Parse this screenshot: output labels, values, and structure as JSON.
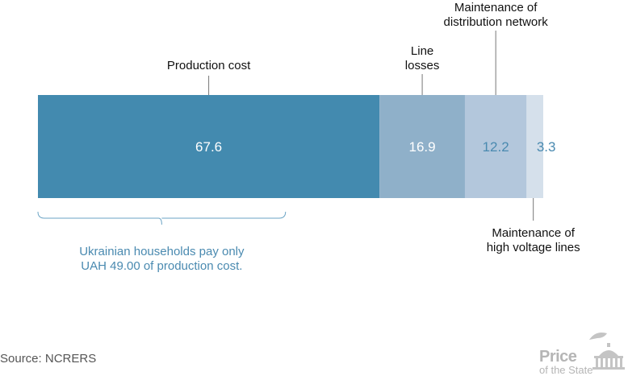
{
  "chart_data": {
    "type": "bar",
    "orientation": "horizontal-stacked",
    "segments": [
      {
        "name": "Production cost",
        "label_lines": [
          "Production cost"
        ],
        "value": 67.6,
        "value_label": "67.6",
        "color": "#438aaf",
        "value_color": "#ffffff"
      },
      {
        "name": "Line losses",
        "label_lines": [
          "Line",
          "losses"
        ],
        "value": 16.9,
        "value_label": "16.9",
        "color": "#8fb0c9",
        "value_color": "#ffffff"
      },
      {
        "name": "Maintenance of distribution network",
        "label_lines": [
          "Maintenance of",
          "distribution network"
        ],
        "value": 12.2,
        "value_label": "12.2",
        "color": "#b3c7dc",
        "value_color": "#4a8ab0"
      },
      {
        "name": "Maintenance of high voltage lines",
        "label_lines": [
          "Maintenance of",
          "high voltage lines"
        ],
        "value": 3.3,
        "value_label": "3.3",
        "color": "#d5e0eb",
        "value_color": "#4a8ab0"
      }
    ],
    "annotation": {
      "lines": [
        "Ukrainian households pay only",
        "UAH 49.00 of production cost."
      ],
      "value": 49.0
    }
  },
  "source": "Source: NCRERS",
  "logo": {
    "title": "Price",
    "subtitle": "of the State"
  }
}
